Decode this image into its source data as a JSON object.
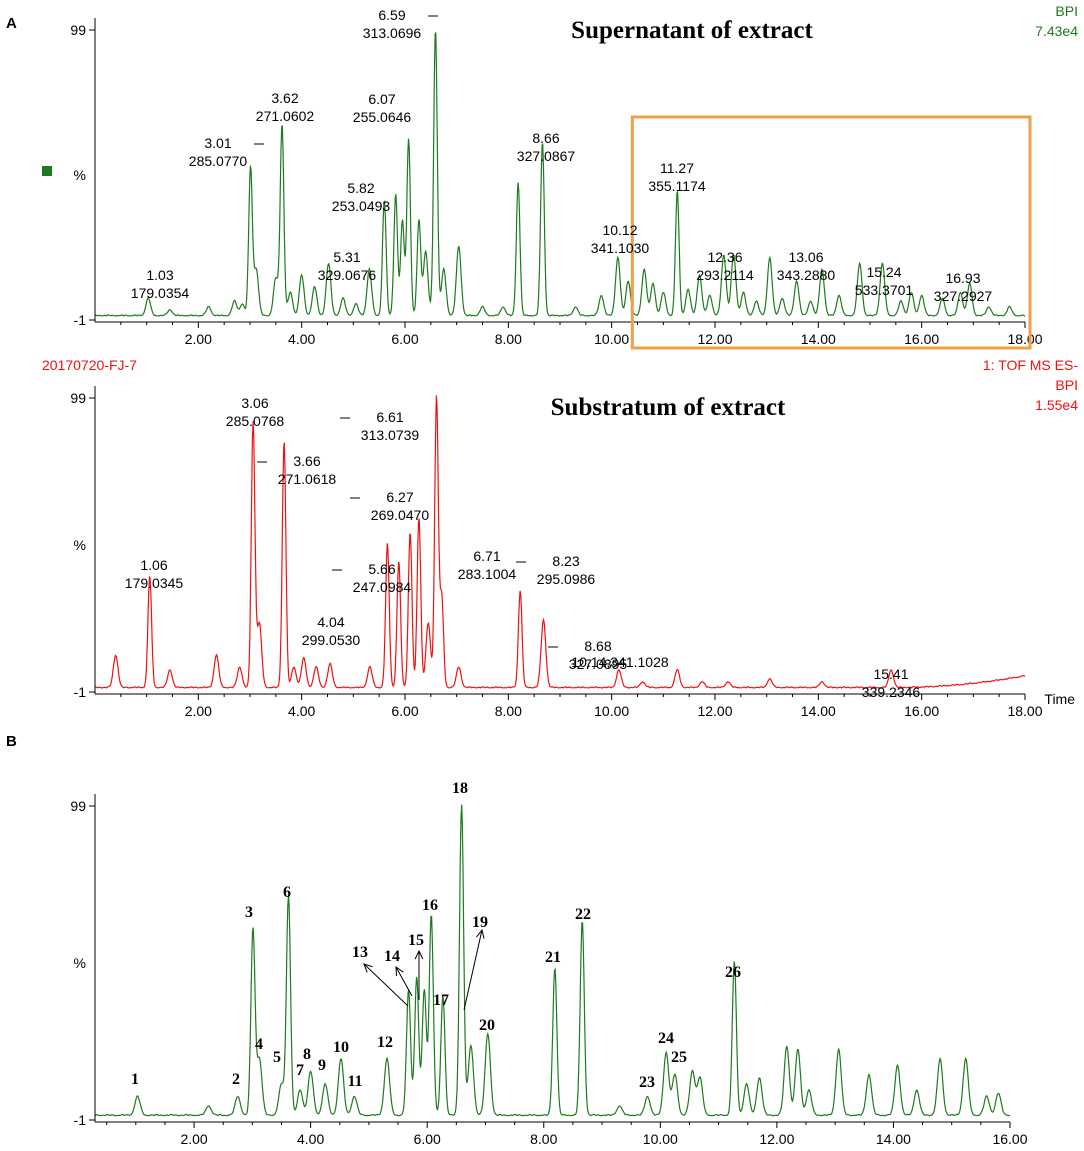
{
  "figure_labels": {
    "A": "A",
    "B": "B"
  },
  "colors": {
    "green": "#1e7a1e",
    "red": "#ee1111",
    "orange": "#f0a04b",
    "axis": "#000000"
  },
  "chart_data": [
    {
      "id": "p1",
      "type": "line",
      "title": "Supernatant of extract",
      "color": "green",
      "xlim": [
        0.0,
        18.0
      ],
      "ylim": [
        -1,
        99
      ],
      "xticks": [
        2,
        4,
        6,
        8,
        10,
        12,
        14,
        16,
        18
      ],
      "xtick_labels": [
        "2.00",
        "4.00",
        "6.00",
        "8.00",
        "10.00",
        "12.00",
        "14.00",
        "16.00",
        "18.00"
      ],
      "ytick_labels": {
        "top": "99",
        "mid": "%",
        "bottom": "-1"
      },
      "legend_marker": "square",
      "top_right": [
        "BPI",
        "7.43e4"
      ],
      "bottom_left": "20170720-FJ-7",
      "bottom_right": "1: TOF MS ES-",
      "highlight_box_xrange": [
        10.4,
        18.0
      ],
      "peaks": [
        {
          "rt": 1.03,
          "h": 6,
          "mz": "179.0354",
          "label": [
            "1.03",
            "179.0354"
          ]
        },
        {
          "rt": 1.45,
          "h": 2
        },
        {
          "rt": 2.2,
          "h": 3
        },
        {
          "rt": 2.7,
          "h": 5
        },
        {
          "rt": 2.85,
          "h": 4
        },
        {
          "rt": 3.01,
          "h": 51,
          "label": [
            "3.01",
            "285.0770"
          ],
          "tick": true
        },
        {
          "rt": 3.12,
          "h": 16
        },
        {
          "rt": 3.5,
          "h": 13
        },
        {
          "rt": 3.62,
          "h": 66,
          "label": [
            "3.62",
            "271.0602"
          ]
        },
        {
          "rt": 3.78,
          "h": 8
        },
        {
          "rt": 4.0,
          "h": 14
        },
        {
          "rt": 4.25,
          "h": 10
        },
        {
          "rt": 4.52,
          "h": 18
        },
        {
          "rt": 4.8,
          "h": 6
        },
        {
          "rt": 5.05,
          "h": 4
        },
        {
          "rt": 5.31,
          "h": 16,
          "label": [
            "5.31",
            "329.0676"
          ]
        },
        {
          "rt": 5.6,
          "h": 40
        },
        {
          "rt": 5.82,
          "h": 42,
          "label": [
            "5.82",
            "253.0493"
          ]
        },
        {
          "rt": 5.95,
          "h": 33
        },
        {
          "rt": 6.07,
          "h": 61,
          "label": [
            "6.07",
            "255.0646"
          ]
        },
        {
          "rt": 6.27,
          "h": 33
        },
        {
          "rt": 6.4,
          "h": 22
        },
        {
          "rt": 6.59,
          "h": 99,
          "label": [
            "6.59",
            "313.0696"
          ],
          "tick": true
        },
        {
          "rt": 6.75,
          "h": 16
        },
        {
          "rt": 7.04,
          "h": 24
        },
        {
          "rt": 7.5,
          "h": 3
        },
        {
          "rt": 7.9,
          "h": 3
        },
        {
          "rt": 8.19,
          "h": 46
        },
        {
          "rt": 8.66,
          "h": 60,
          "label": [
            "8.66",
            "327.0867"
          ]
        },
        {
          "rt": 9.3,
          "h": 3
        },
        {
          "rt": 9.8,
          "h": 7
        },
        {
          "rt": 10.12,
          "h": 20,
          "label": [
            "10.12",
            "341.1030"
          ]
        },
        {
          "rt": 10.32,
          "h": 12
        },
        {
          "rt": 10.63,
          "h": 16
        },
        {
          "rt": 10.8,
          "h": 11
        },
        {
          "rt": 11.0,
          "h": 8
        },
        {
          "rt": 11.27,
          "h": 43,
          "label": [
            "11.27",
            "355.1174"
          ]
        },
        {
          "rt": 11.48,
          "h": 9
        },
        {
          "rt": 11.7,
          "h": 14
        },
        {
          "rt": 11.9,
          "h": 7
        },
        {
          "rt": 12.17,
          "h": 21
        },
        {
          "rt": 12.36,
          "h": 21,
          "label": [
            "12.36",
            "293.2114"
          ]
        },
        {
          "rt": 12.55,
          "h": 8
        },
        {
          "rt": 12.8,
          "h": 5
        },
        {
          "rt": 13.06,
          "h": 20,
          "label": [
            "13.06",
            "343.2880"
          ]
        },
        {
          "rt": 13.3,
          "h": 6
        },
        {
          "rt": 13.58,
          "h": 12
        },
        {
          "rt": 13.85,
          "h": 5
        },
        {
          "rt": 14.07,
          "h": 16
        },
        {
          "rt": 14.4,
          "h": 7
        },
        {
          "rt": 14.8,
          "h": 18
        },
        {
          "rt": 15.24,
          "h": 18,
          "label": [
            "15.24",
            "533.3701"
          ]
        },
        {
          "rt": 15.6,
          "h": 5
        },
        {
          "rt": 15.8,
          "h": 8
        },
        {
          "rt": 16.0,
          "h": 7
        },
        {
          "rt": 16.4,
          "h": 6
        },
        {
          "rt": 16.75,
          "h": 8
        },
        {
          "rt": 16.93,
          "h": 11,
          "label": [
            "16.93",
            "327.2927"
          ]
        },
        {
          "rt": 17.3,
          "h": 3
        },
        {
          "rt": 17.7,
          "h": 3
        }
      ]
    },
    {
      "id": "p2",
      "type": "line",
      "title": "Substratum of extract",
      "color": "red",
      "xlim": [
        0.0,
        18.0
      ],
      "ylim": [
        -1,
        99
      ],
      "xticks": [
        2,
        4,
        6,
        8,
        10,
        12,
        14,
        16,
        18
      ],
      "xtick_labels": [
        "2.00",
        "4.00",
        "6.00",
        "8.00",
        "10.00",
        "12.00",
        "14.00",
        "16.00",
        "18.00"
      ],
      "ytick_labels": {
        "top": "99",
        "mid": "%",
        "bottom": "-1"
      },
      "xlabel": "Time",
      "top_right": [
        "BPI",
        "1.55e4"
      ],
      "peaks": [
        {
          "rt": 0.4,
          "h": 11
        },
        {
          "rt": 1.06,
          "h": 38,
          "label": [
            "1.06",
            "179.0345"
          ]
        },
        {
          "rt": 1.45,
          "h": 6
        },
        {
          "rt": 2.35,
          "h": 11
        },
        {
          "rt": 2.8,
          "h": 7
        },
        {
          "rt": 3.06,
          "h": 90,
          "label": [
            "3.06",
            "285.0768"
          ]
        },
        {
          "rt": 3.18,
          "h": 22
        },
        {
          "rt": 3.66,
          "h": 84,
          "label": [
            "3.66",
            "271.0618"
          ],
          "tick": true
        },
        {
          "rt": 3.85,
          "h": 7
        },
        {
          "rt": 4.04,
          "h": 10,
          "label": [
            "4.04",
            "299.0530"
          ]
        },
        {
          "rt": 4.28,
          "h": 7
        },
        {
          "rt": 4.55,
          "h": 8
        },
        {
          "rt": 5.32,
          "h": 7
        },
        {
          "rt": 5.66,
          "h": 49,
          "label": [
            "5.66",
            "247.0984"
          ],
          "tick": true
        },
        {
          "rt": 5.88,
          "h": 43
        },
        {
          "rt": 6.1,
          "h": 53
        },
        {
          "rt": 6.27,
          "h": 58,
          "label": [
            "6.27",
            "269.0470"
          ],
          "tick": true
        },
        {
          "rt": 6.45,
          "h": 22
        },
        {
          "rt": 6.61,
          "h": 99,
          "label": [
            "6.61",
            "313.0739"
          ],
          "tick": true
        },
        {
          "rt": 6.71,
          "h": 31,
          "label": [
            "6.71",
            "283.1004"
          ]
        },
        {
          "rt": 7.04,
          "h": 7
        },
        {
          "rt": 8.23,
          "h": 33,
          "label": [
            "8.23",
            "295.0986"
          ],
          "tick": true
        },
        {
          "rt": 8.68,
          "h": 23,
          "label": [
            "8.68",
            "327.0895"
          ],
          "tick": true
        },
        {
          "rt": 10.14,
          "h": 6,
          "label": [
            "10.14;341.1028"
          ]
        },
        {
          "rt": 10.6,
          "h": 2
        },
        {
          "rt": 11.27,
          "h": 6
        },
        {
          "rt": 11.75,
          "h": 2
        },
        {
          "rt": 12.25,
          "h": 2
        },
        {
          "rt": 13.06,
          "h": 3
        },
        {
          "rt": 14.07,
          "h": 2
        },
        {
          "rt": 15.41,
          "h": 6,
          "label": [
            "15.41",
            "339.2346"
          ]
        }
      ],
      "baseline_rise": {
        "from": 15.5,
        "to": 18.0,
        "end_h": 4
      }
    },
    {
      "id": "p3",
      "type": "line",
      "color": "green",
      "xlim": [
        0.3,
        16.0
      ],
      "ylim": [
        -1,
        99
      ],
      "xticks": [
        2,
        4,
        6,
        8,
        10,
        12,
        14,
        16
      ],
      "xtick_labels": [
        "2.00",
        "4.00",
        "6.00",
        "8.00",
        "10.00",
        "12.00",
        "14.00",
        "16.00"
      ],
      "ytick_labels": {
        "top": "99",
        "mid": "%",
        "bottom": "-1"
      },
      "peaks": [
        {
          "rt": 1.03,
          "h": 6,
          "num": "1"
        },
        {
          "rt": 2.25,
          "h": 3
        },
        {
          "rt": 2.75,
          "h": 6,
          "num": "2"
        },
        {
          "rt": 3.01,
          "h": 59,
          "num": "3"
        },
        {
          "rt": 3.12,
          "h": 18,
          "num": "4"
        },
        {
          "rt": 3.5,
          "h": 10,
          "num": "5"
        },
        {
          "rt": 3.62,
          "h": 70,
          "num": "6"
        },
        {
          "rt": 3.82,
          "h": 8,
          "num": "7"
        },
        {
          "rt": 4.0,
          "h": 14,
          "num": "8"
        },
        {
          "rt": 4.25,
          "h": 10,
          "num": "9"
        },
        {
          "rt": 4.52,
          "h": 18,
          "num": "10"
        },
        {
          "rt": 4.75,
          "h": 6,
          "num": "11"
        },
        {
          "rt": 5.31,
          "h": 18,
          "num": "12"
        },
        {
          "rt": 5.68,
          "h": 40,
          "num": "13"
        },
        {
          "rt": 5.82,
          "h": 44,
          "num": "14"
        },
        {
          "rt": 5.95,
          "h": 40,
          "num": "15"
        },
        {
          "rt": 6.07,
          "h": 64,
          "num": "16"
        },
        {
          "rt": 6.27,
          "h": 38,
          "num": "17"
        },
        {
          "rt": 6.59,
          "h": 99,
          "num": "18"
        },
        {
          "rt": 6.75,
          "h": 22,
          "num": "19"
        },
        {
          "rt": 7.04,
          "h": 26,
          "num": "20"
        },
        {
          "rt": 8.19,
          "h": 47,
          "num": "21"
        },
        {
          "rt": 8.66,
          "h": 62,
          "num": "22"
        },
        {
          "rt": 9.3,
          "h": 3
        },
        {
          "rt": 9.78,
          "h": 6,
          "num": "23"
        },
        {
          "rt": 10.1,
          "h": 20,
          "num": "24"
        },
        {
          "rt": 10.25,
          "h": 13,
          "num": "25"
        },
        {
          "rt": 10.55,
          "h": 14
        },
        {
          "rt": 10.68,
          "h": 12
        },
        {
          "rt": 11.27,
          "h": 49,
          "num": "26"
        },
        {
          "rt": 11.48,
          "h": 10
        },
        {
          "rt": 11.7,
          "h": 12
        },
        {
          "rt": 12.17,
          "h": 22
        },
        {
          "rt": 12.36,
          "h": 21
        },
        {
          "rt": 12.55,
          "h": 8
        },
        {
          "rt": 13.06,
          "h": 21
        },
        {
          "rt": 13.58,
          "h": 13
        },
        {
          "rt": 14.07,
          "h": 16
        },
        {
          "rt": 14.4,
          "h": 8
        },
        {
          "rt": 14.8,
          "h": 18
        },
        {
          "rt": 15.24,
          "h": 18
        },
        {
          "rt": 15.6,
          "h": 6
        },
        {
          "rt": 15.8,
          "h": 7
        }
      ]
    }
  ]
}
